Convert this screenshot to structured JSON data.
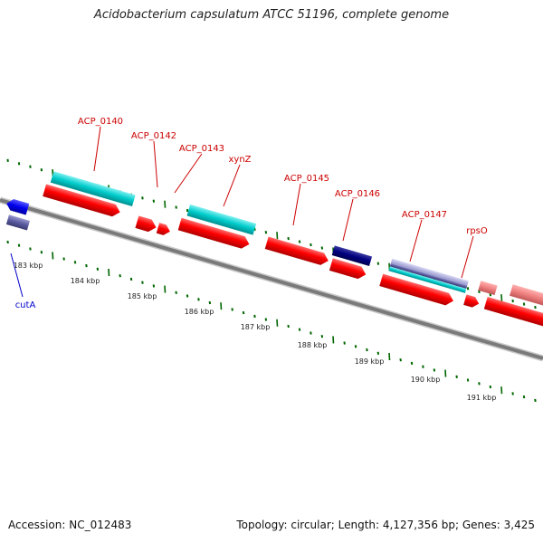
{
  "header": {
    "title": "Acidobacterium capsulatum ATCC 51196, complete genome"
  },
  "footer": {
    "accession": "Accession: NC_012483",
    "summary": "Topology: circular; Length: 4,127,356 bp; Genes: 3,425"
  },
  "colors": {
    "cds_forward": "#ff0000",
    "cds_reverse": "#0000ff",
    "gene_feature": "#00cccc",
    "rna_feature": "#f08080",
    "backbone": "#777777",
    "tick": "#006600",
    "label_forward": "#cc0000",
    "label_reverse": "#0000cc"
  },
  "scale_labels": [
    "183 kbp",
    "184 kbp",
    "185 kbp",
    "186 kbp",
    "187 kbp",
    "188 kbp",
    "189 kbp",
    "190 kbp",
    "191 kbp"
  ],
  "gene_labels": [
    {
      "name": "ACP_0140",
      "strand": "forward"
    },
    {
      "name": "ACP_0142",
      "strand": "forward"
    },
    {
      "name": "ACP_0143",
      "strand": "forward"
    },
    {
      "name": "xynZ",
      "strand": "forward"
    },
    {
      "name": "ACP_0145",
      "strand": "forward"
    },
    {
      "name": "ACP_0146",
      "strand": "forward"
    },
    {
      "name": "ACP_0147",
      "strand": "forward"
    },
    {
      "name": "rpsO",
      "strand": "forward"
    },
    {
      "name": "cutA",
      "strand": "reverse"
    }
  ]
}
